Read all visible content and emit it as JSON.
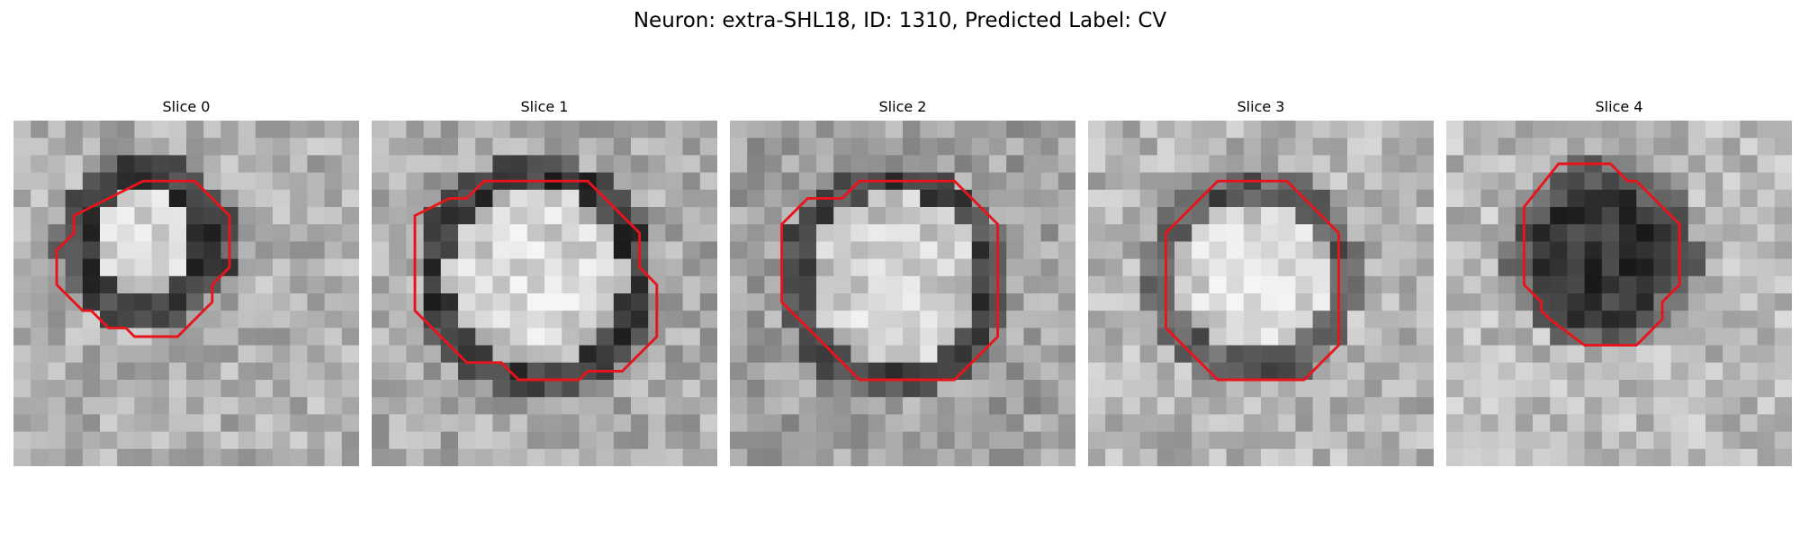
{
  "figure": {
    "title": "Neuron: extra-SHL18, ID: 1310, Predicted Label: CV"
  },
  "contour_color": "#e8141c",
  "slices": [
    {
      "title": "Slice 0",
      "image_description": "grayscale microscopy patch, small bright blob with dark surrounding ring",
      "contour_vertices": [
        [
          7.5,
          3.5
        ],
        [
          10.5,
          3.5
        ],
        [
          12.5,
          5.5
        ],
        [
          12.5,
          8.5
        ],
        [
          11.5,
          9.5
        ],
        [
          11.5,
          10.5
        ],
        [
          9.5,
          12.5
        ],
        [
          7.0,
          12.5
        ],
        [
          6.5,
          12.0
        ],
        [
          5.5,
          12.0
        ],
        [
          4.5,
          11.0
        ],
        [
          4.0,
          11.0
        ],
        [
          2.5,
          9.5
        ],
        [
          2.5,
          7.5
        ],
        [
          3.0,
          7.0
        ],
        [
          3.5,
          6.5
        ],
        [
          3.5,
          5.5
        ]
      ]
    },
    {
      "title": "Slice 1",
      "image_description": "grayscale microscopy patch, large bright vesicle with dark rim",
      "contour_vertices": [
        [
          6.5,
          3.5
        ],
        [
          12.5,
          3.5
        ],
        [
          14.5,
          5.5
        ],
        [
          15.5,
          6.5
        ],
        [
          15.5,
          8.5
        ],
        [
          16.0,
          9.0
        ],
        [
          16.5,
          9.5
        ],
        [
          16.5,
          12.5
        ],
        [
          14.5,
          14.5
        ],
        [
          12.5,
          14.5
        ],
        [
          12.0,
          15.0
        ],
        [
          8.5,
          15.0
        ],
        [
          7.5,
          14.0
        ],
        [
          5.5,
          14.0
        ],
        [
          3.5,
          12.0
        ],
        [
          2.5,
          11.0
        ],
        [
          2.5,
          5.5
        ],
        [
          4.5,
          4.5
        ],
        [
          5.5,
          4.5
        ]
      ]
    },
    {
      "title": "Slice 2",
      "image_description": "grayscale microscopy patch, bright oval with dark crescent above",
      "contour_vertices": [
        [
          7.5,
          3.5
        ],
        [
          13.0,
          3.5
        ],
        [
          15.5,
          6.0
        ],
        [
          15.5,
          12.5
        ],
        [
          13.0,
          15.0
        ],
        [
          7.5,
          15.0
        ],
        [
          4.5,
          12.0
        ],
        [
          3.0,
          10.5
        ],
        [
          3.0,
          6.0
        ],
        [
          4.5,
          4.5
        ],
        [
          6.5,
          4.5
        ]
      ]
    },
    {
      "title": "Slice 3",
      "image_description": "grayscale microscopy patch, bright round blob with darker lower-left edge",
      "contour_vertices": [
        [
          7.5,
          3.5
        ],
        [
          11.5,
          3.5
        ],
        [
          14.5,
          6.5
        ],
        [
          14.5,
          13.0
        ],
        [
          12.5,
          15.0
        ],
        [
          7.5,
          15.0
        ],
        [
          5.5,
          13.0
        ],
        [
          4.5,
          12.0
        ],
        [
          4.5,
          6.5
        ]
      ]
    },
    {
      "title": "Slice 4",
      "image_description": "grayscale microscopy patch, dark irregular region outlined by contour",
      "contour_vertices": [
        [
          6.5,
          2.5
        ],
        [
          9.5,
          2.5
        ],
        [
          10.5,
          3.5
        ],
        [
          11.0,
          3.5
        ],
        [
          13.5,
          6.0
        ],
        [
          13.5,
          9.5
        ],
        [
          12.5,
          10.5
        ],
        [
          12.5,
          11.5
        ],
        [
          11.0,
          13.0
        ],
        [
          8.0,
          13.0
        ],
        [
          6.0,
          11.5
        ],
        [
          5.5,
          11.0
        ],
        [
          5.5,
          10.5
        ],
        [
          4.5,
          9.5
        ],
        [
          4.5,
          5.0
        ]
      ]
    }
  ]
}
